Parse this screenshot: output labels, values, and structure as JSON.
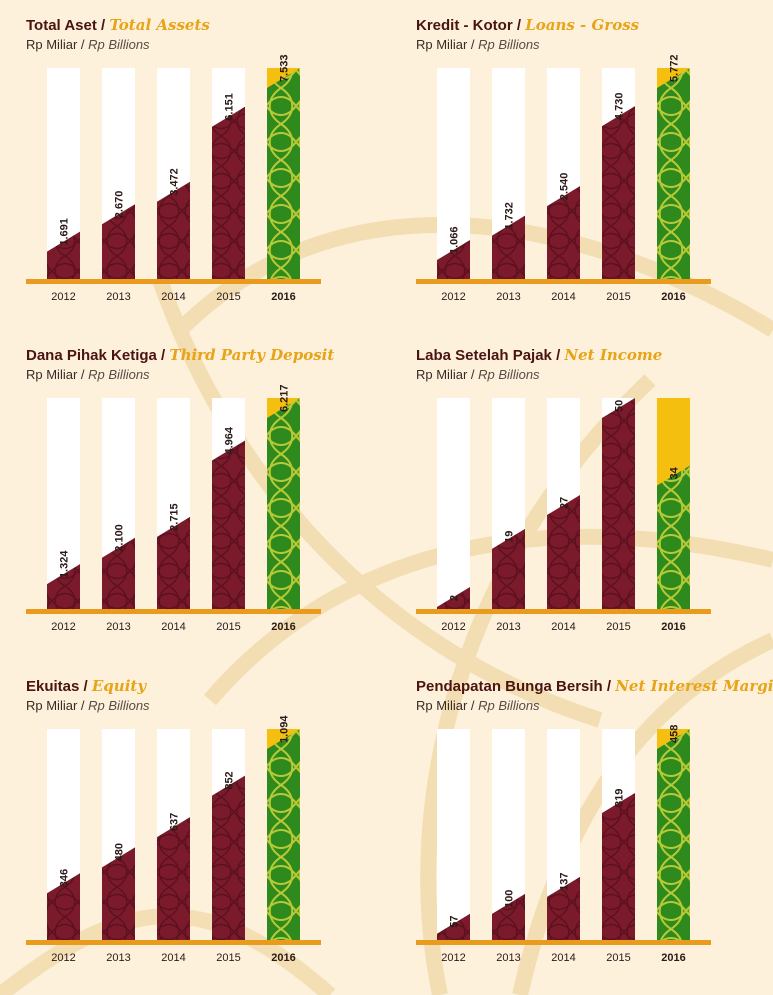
{
  "palette": {
    "background": "#fdf1dc",
    "maroon": "#7a1a2a",
    "green": "#2f8a1e",
    "yellow": "#f5bf10",
    "axis": "#e89b1c",
    "title": "#4a1410",
    "accent_text": "#e8a317"
  },
  "chart_data": [
    {
      "type": "bar",
      "title_id": "Total Aset",
      "title_en": "Total Assets",
      "unit_id": "Rp Miliar",
      "unit_en": "Rp Billions",
      "categories": [
        "2012",
        "2013",
        "2014",
        "2015",
        "2016"
      ],
      "values": [
        1691,
        2670,
        3472,
        6151,
        7533
      ],
      "labels": [
        "1.691",
        "2.670",
        "3.472",
        "6.151",
        "7.533"
      ],
      "highlight": "2016"
    },
    {
      "type": "bar",
      "title_id": "Kredit - Kotor",
      "title_en": "Loans - Gross",
      "unit_id": "Rp Miliar",
      "unit_en": "Rp Billions",
      "categories": [
        "2012",
        "2013",
        "2014",
        "2015",
        "2016"
      ],
      "values": [
        1066,
        1732,
        2540,
        4730,
        5772
      ],
      "labels": [
        "1.066",
        "1.732",
        "2.540",
        "4.730",
        "5.772"
      ],
      "highlight": "2016"
    },
    {
      "type": "bar",
      "title_id": "Dana Pihak Ketiga",
      "title_en": "Third Party Deposit",
      "unit_id": "Rp Miliar",
      "unit_en": "Rp Billions",
      "categories": [
        "2012",
        "2013",
        "2014",
        "2015",
        "2016"
      ],
      "values": [
        1324,
        2100,
        2715,
        4964,
        6217
      ],
      "labels": [
        "1.324",
        "2.100",
        "2.715",
        "4.964",
        "6.217"
      ],
      "highlight": "2016"
    },
    {
      "type": "bar",
      "title_id": "Laba Setelah Pajak",
      "title_en": "Net Income",
      "unit_id": "Rp Miliar",
      "unit_en": "Rp Billions",
      "categories": [
        "2012",
        "2013",
        "2014",
        "2015",
        "2016"
      ],
      "values": [
        2,
        19,
        27,
        50,
        34
      ],
      "labels": [
        "2",
        "19",
        "27",
        "50",
        "34"
      ],
      "highlight": "2016"
    },
    {
      "type": "bar",
      "title_id": "Ekuitas",
      "title_en": "Equity",
      "unit_id": "Rp Miliar",
      "unit_en": "Rp Billions",
      "categories": [
        "2012",
        "2013",
        "2014",
        "2015",
        "2016"
      ],
      "values": [
        346,
        480,
        637,
        852,
        1094
      ],
      "labels": [
        "346",
        "480",
        "637",
        "852",
        "1.094"
      ],
      "highlight": "2016"
    },
    {
      "type": "bar",
      "title_id": "Pendapatan Bunga Bersih",
      "title_en": "Net Interest Margin",
      "unit_id": "Rp Miliar",
      "unit_en": "Rp Billions",
      "categories": [
        "2012",
        "2013",
        "2014",
        "2015",
        "2016"
      ],
      "values": [
        57,
        100,
        137,
        319,
        458
      ],
      "labels": [
        "57",
        "100",
        "137",
        "319",
        "458"
      ],
      "highlight": "2016"
    }
  ]
}
